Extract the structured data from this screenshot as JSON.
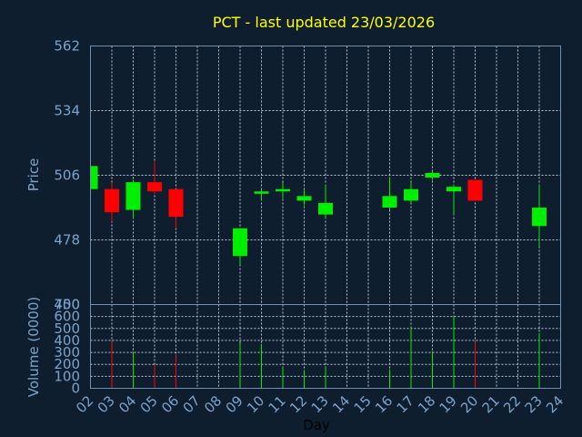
{
  "chart_data": {
    "type": "candlestick",
    "title": "PCT - last updated 23/03/2026",
    "xlabel": "Day",
    "price_ylabel": "Price",
    "volume_ylabel": "Volume (0000)",
    "price_ylim": [
      450,
      562
    ],
    "price_ticks": [
      "562",
      "534",
      "506",
      "478",
      "450"
    ],
    "volume_ylim": [
      0,
      700
    ],
    "volume_ticks": [
      "700",
      "600",
      "500",
      "400",
      "300",
      "200",
      "100",
      "0"
    ],
    "x_ticks": [
      "02",
      "03",
      "04",
      "05",
      "06",
      "07",
      "08",
      "09",
      "10",
      "11",
      "12",
      "13",
      "14",
      "15",
      "16",
      "17",
      "18",
      "19",
      "20",
      "21",
      "22",
      "23",
      "24"
    ],
    "up_color": "#00ee00",
    "down_color": "#ff0000",
    "candles": [
      {
        "day": "02",
        "open": 500,
        "high": 510,
        "low": 500,
        "close": 510,
        "volume": 0
      },
      {
        "day": "03",
        "open": 500,
        "high": 503,
        "low": 486,
        "close": 490,
        "volume": 390
      },
      {
        "day": "04",
        "open": 491,
        "high": 504,
        "low": 487,
        "close": 503,
        "volume": 300
      },
      {
        "day": "05",
        "open": 503,
        "high": 512,
        "low": 498,
        "close": 499,
        "volume": 200
      },
      {
        "day": "06",
        "open": 500,
        "high": 500,
        "low": 483,
        "close": 488,
        "volume": 270
      },
      {
        "day": "09",
        "open": 471,
        "high": 483,
        "low": 467,
        "close": 483,
        "volume": 380
      },
      {
        "day": "10",
        "open": 498,
        "high": 500,
        "low": 495,
        "close": 499,
        "volume": 370
      },
      {
        "day": "11",
        "open": 499,
        "high": 503,
        "low": 496,
        "close": 500,
        "volume": 180
      },
      {
        "day": "12",
        "open": 495,
        "high": 500,
        "low": 493,
        "close": 497,
        "volume": 150
      },
      {
        "day": "13",
        "open": 489,
        "high": 502,
        "low": 487,
        "close": 494,
        "volume": 180
      },
      {
        "day": "16",
        "open": 492,
        "high": 505,
        "low": 491,
        "close": 497,
        "volume": 160
      },
      {
        "day": "17",
        "open": 495,
        "high": 503,
        "low": 494,
        "close": 500,
        "volume": 510
      },
      {
        "day": "18",
        "open": 505,
        "high": 508,
        "low": 504,
        "close": 507,
        "volume": 310
      },
      {
        "day": "19",
        "open": 499,
        "high": 502,
        "low": 489,
        "close": 501,
        "volume": 610
      },
      {
        "day": "20",
        "open": 504,
        "high": 504,
        "low": 495,
        "close": 495,
        "volume": 390
      },
      {
        "day": "23",
        "open": 484,
        "high": 502,
        "low": 475,
        "close": 492,
        "volume": 460
      }
    ]
  }
}
